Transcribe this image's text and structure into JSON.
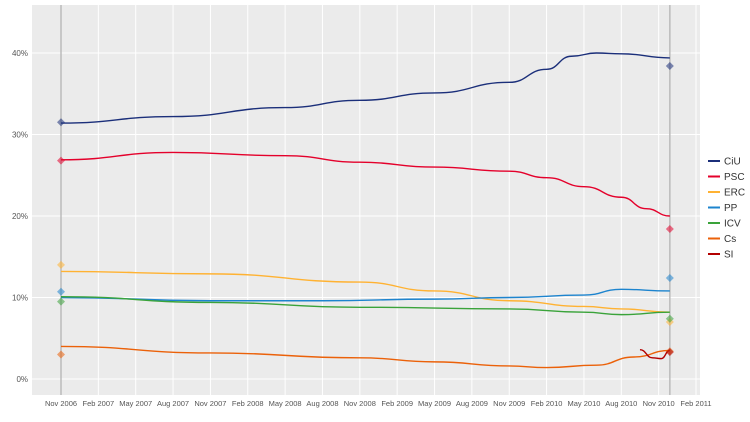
{
  "chart_data": {
    "type": "line",
    "title": "",
    "xlabel": "",
    "ylabel": "",
    "ylim": [
      0,
      45
    ],
    "xlim": [
      "2006-10",
      "2011-02"
    ],
    "grid": true,
    "legend_placement": "right",
    "y_ticks": [
      "0%",
      "10%",
      "20%",
      "30%",
      "40%"
    ],
    "y_tick_values": [
      0,
      10,
      20,
      30,
      40
    ],
    "x_ticks": [
      "Nov 2006",
      "Feb 2007",
      "May 2007",
      "Aug 2007",
      "Nov 2007",
      "Feb 2008",
      "May 2008",
      "Aug 2008",
      "Nov 2008",
      "Feb 2009",
      "May 2009",
      "Aug 2009",
      "Nov 2009",
      "Feb 2010",
      "May 2010",
      "Aug 2010",
      "Nov 2010",
      "Feb 2011"
    ],
    "x_tick_values": [
      "2006-11",
      "2007-02",
      "2007-05",
      "2007-08",
      "2007-11",
      "2008-02",
      "2008-05",
      "2008-08",
      "2008-11",
      "2009-02",
      "2009-05",
      "2009-08",
      "2009-11",
      "2010-02",
      "2010-05",
      "2010-08",
      "2010-11",
      "2011-02"
    ],
    "election_lines": [
      "2006-11",
      "2010-11.9"
    ],
    "series": [
      {
        "name": "CiU",
        "color": "#1b2f7a",
        "x": [
          "2006-11",
          "2007-08",
          "2008-05",
          "2008-11",
          "2009-05",
          "2009-11",
          "2010-02",
          "2010-04",
          "2010-06",
          "2010-08",
          "2010-11.9"
        ],
        "values": [
          31.4,
          32.2,
          33.3,
          34.2,
          35.1,
          36.4,
          38.0,
          39.6,
          40.0,
          39.9,
          39.4
        ],
        "results": [
          31.5,
          38.4
        ]
      },
      {
        "name": "PSC",
        "color": "#e4002b",
        "x": [
          "2006-11",
          "2007-08",
          "2008-05",
          "2008-11",
          "2009-05",
          "2009-11",
          "2010-02",
          "2010-05",
          "2010-08",
          "2010-10",
          "2010-11.9"
        ],
        "values": [
          26.9,
          27.8,
          27.4,
          26.6,
          26.0,
          25.5,
          24.7,
          23.6,
          22.3,
          20.9,
          20.0
        ],
        "results": [
          26.8,
          18.4
        ]
      },
      {
        "name": "ERC",
        "color": "#ffb232",
        "x": [
          "2006-11",
          "2007-11",
          "2008-11",
          "2009-05",
          "2009-11",
          "2010-05",
          "2010-08",
          "2010-11.9"
        ],
        "values": [
          13.2,
          12.9,
          11.9,
          10.8,
          9.6,
          8.9,
          8.6,
          8.2
        ],
        "results": [
          14.0,
          7.0
        ]
      },
      {
        "name": "PP",
        "color": "#1d84ce",
        "x": [
          "2006-11",
          "2007-11",
          "2008-08",
          "2009-05",
          "2009-11",
          "2010-05",
          "2010-08",
          "2010-11.9"
        ],
        "values": [
          10.0,
          9.6,
          9.6,
          9.8,
          10.0,
          10.3,
          11.0,
          10.8
        ],
        "results": [
          10.7,
          12.4
        ]
      },
      {
        "name": "ICV",
        "color": "#3aa33a",
        "x": [
          "2006-11",
          "2007-11",
          "2008-11",
          "2009-11",
          "2010-05",
          "2010-08",
          "2010-11.9"
        ],
        "values": [
          10.1,
          9.4,
          8.8,
          8.6,
          8.2,
          7.9,
          8.2
        ],
        "results": [
          9.5,
          7.4
        ]
      },
      {
        "name": "Cs",
        "color": "#eb6109",
        "x": [
          "2006-11",
          "2007-11",
          "2008-11",
          "2009-05",
          "2009-11",
          "2010-02",
          "2010-06",
          "2010-09",
          "2010-11.9"
        ],
        "values": [
          4.0,
          3.2,
          2.6,
          2.1,
          1.6,
          1.4,
          1.7,
          2.7,
          3.5
        ],
        "results": [
          3.0,
          3.4
        ]
      },
      {
        "name": "SI",
        "color": "#b30000",
        "x": [
          "2010-09.5",
          "2010-10.5",
          "2010-11.2",
          "2010-11.9"
        ],
        "values": [
          3.6,
          2.6,
          2.5,
          3.5
        ],
        "results": [
          null,
          3.3
        ]
      }
    ]
  }
}
